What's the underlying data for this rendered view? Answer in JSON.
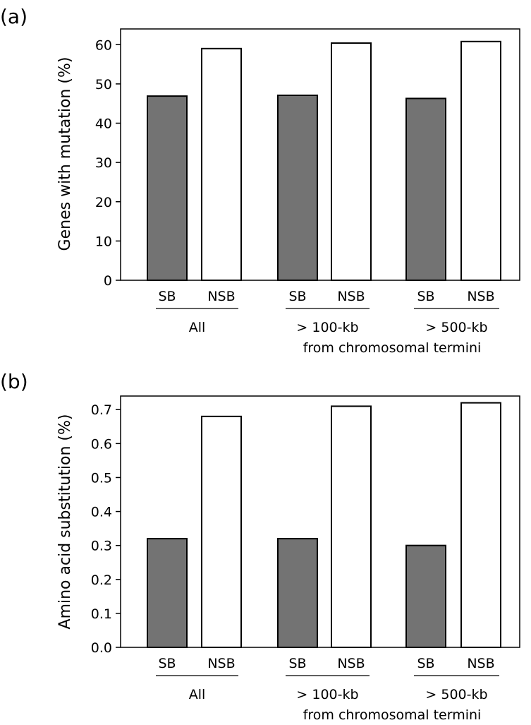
{
  "chart_data": [
    {
      "type": "bar",
      "panel_label": "(a)",
      "ylabel": "Genes with mutation (%)",
      "xlabel": "",
      "ylim": [
        0,
        64
      ],
      "yticks": [
        0,
        10,
        20,
        30,
        40,
        50,
        60
      ],
      "grid": false,
      "groups": [
        "All",
        "> 100-kb",
        "> 500-kb"
      ],
      "group_caption": "from chromosomal termini",
      "categories": [
        "SB",
        "NSB",
        "SB",
        "NSB",
        "SB",
        "NSB"
      ],
      "values": [
        46.9,
        59.0,
        47.1,
        60.4,
        46.3,
        60.8
      ],
      "bar_fills": [
        "#737373",
        "#ffffff",
        "#737373",
        "#ffffff",
        "#737373",
        "#ffffff"
      ]
    },
    {
      "type": "bar",
      "panel_label": "(b)",
      "ylabel": "Amino acid substitution (%)",
      "xlabel": "",
      "ylim": [
        0,
        0.74
      ],
      "yticks": [
        "0.0",
        "0.1",
        "0.2",
        "0.3",
        "0.4",
        "0.5",
        "0.6",
        "0.7"
      ],
      "grid": false,
      "groups": [
        "All",
        "> 100-kb",
        "> 500-kb"
      ],
      "group_caption": "from chromosomal termini",
      "categories": [
        "SB",
        "NSB",
        "SB",
        "NSB",
        "SB",
        "NSB"
      ],
      "values": [
        0.32,
        0.68,
        0.32,
        0.71,
        0.3,
        0.72
      ],
      "bar_fills": [
        "#737373",
        "#ffffff",
        "#737373",
        "#ffffff",
        "#737373",
        "#ffffff"
      ]
    }
  ]
}
